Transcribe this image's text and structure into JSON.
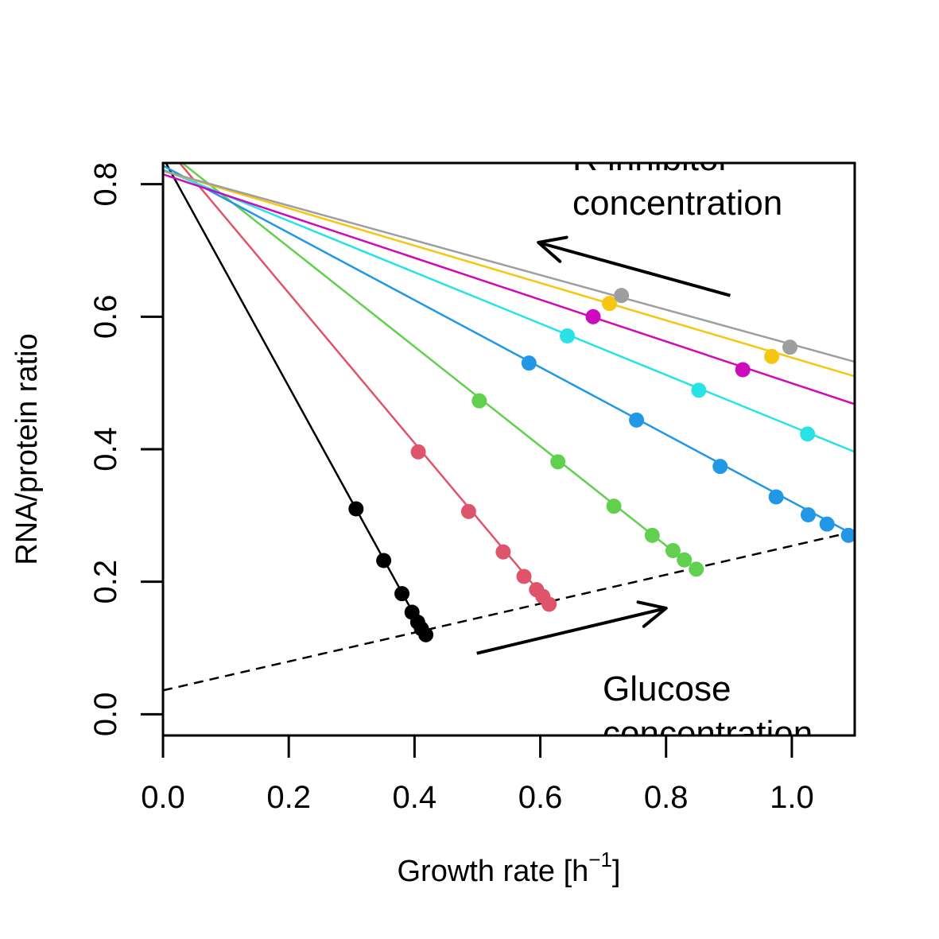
{
  "chart_data": {
    "type": "scatter",
    "xlabel_main": "Growth rate [h",
    "xlabel_sup": "−1",
    "xlabel_tail": "]",
    "ylabel": "RNA/protein ratio",
    "xlim": [
      0.0,
      1.1
    ],
    "ylim": [
      -0.032,
      0.832
    ],
    "x_ticks": [
      0.0,
      0.2,
      0.4,
      0.6,
      0.8,
      1.0
    ],
    "x_tick_labels": [
      "0.0",
      "0.2",
      "0.4",
      "0.6",
      "0.8",
      "1.0"
    ],
    "y_ticks": [
      0.0,
      0.2,
      0.4,
      0.6,
      0.8
    ],
    "y_tick_labels": [
      "0.0",
      "0.2",
      "0.4",
      "0.6",
      "0.8"
    ],
    "grid": false,
    "legend": "none",
    "annotations": {
      "inhibitor": {
        "line1": "R inhibitor",
        "line2": "concentration"
      },
      "glucose": {
        "line1": "Glucose",
        "line2": "concentration"
      }
    },
    "series": [
      {
        "color": "#000000",
        "line": {
          "x": [
            0.0,
            0.418
          ],
          "y": [
            0.84,
            0.118
          ]
        },
        "points": {
          "x": [
            0.307,
            0.351,
            0.38,
            0.396,
            0.405,
            0.411,
            0.418
          ],
          "y": [
            0.31,
            0.232,
            0.182,
            0.154,
            0.139,
            0.129,
            0.12
          ]
        }
      },
      {
        "color": "#DF536B",
        "line": {
          "x": [
            0.0,
            0.615
          ],
          "y": [
            0.862,
            0.166
          ]
        },
        "points": {
          "x": [
            0.406,
            0.486,
            0.541,
            0.574,
            0.594,
            0.604,
            0.614
          ],
          "y": [
            0.396,
            0.306,
            0.245,
            0.208,
            0.188,
            0.178,
            0.166
          ]
        }
      },
      {
        "color": "#61D04F",
        "line": {
          "x": [
            0.0,
            0.85
          ],
          "y": [
            0.855,
            0.217
          ]
        },
        "points": {
          "x": [
            0.503,
            0.628,
            0.717,
            0.778,
            0.811,
            0.829,
            0.848
          ],
          "y": [
            0.473,
            0.381,
            0.314,
            0.27,
            0.247,
            0.233,
            0.219
          ]
        }
      },
      {
        "color": "#2297E6",
        "line": {
          "x": [
            0.0,
            1.1
          ],
          "y": [
            0.828,
            0.27
          ]
        },
        "points": {
          "x": [
            0.582,
            0.753,
            0.886,
            0.975,
            1.026,
            1.056,
            1.09
          ],
          "y": [
            0.53,
            0.444,
            0.374,
            0.328,
            0.301,
            0.287,
            0.27
          ]
        }
      },
      {
        "color": "#28E2E5",
        "line": {
          "x": [
            0.0,
            1.1
          ],
          "y": [
            0.822,
            0.396
          ]
        },
        "points": {
          "x": [
            0.643,
            0.852,
            1.025
          ],
          "y": [
            0.571,
            0.489,
            0.423
          ]
        }
      },
      {
        "color": "#CD0BBC",
        "line": {
          "x": [
            0.0,
            1.1
          ],
          "y": [
            0.815,
            0.468
          ]
        },
        "points": {
          "x": [
            0.684,
            0.922
          ],
          "y": [
            0.6,
            0.52
          ]
        }
      },
      {
        "color": "#F5C710",
        "line": {
          "x": [
            0.0,
            1.1
          ],
          "y": [
            0.82,
            0.51
          ]
        },
        "points": {
          "x": [
            0.71,
            0.968
          ],
          "y": [
            0.62,
            0.54
          ]
        }
      },
      {
        "color": "#9E9E9E",
        "line": {
          "x": [
            0.0,
            1.1
          ],
          "y": [
            0.82,
            0.532
          ]
        },
        "points": {
          "x": [
            0.729,
            0.997
          ],
          "y": [
            0.632,
            0.554
          ]
        }
      }
    ],
    "reference_line": {
      "color": "#000000",
      "style": "dashed",
      "x": [
        0.0,
        1.1
      ],
      "y": [
        0.036,
        0.276
      ]
    },
    "arrows": [
      {
        "from": {
          "x": 0.902,
          "y": 0.632
        },
        "to": {
          "x": 0.597,
          "y": 0.712
        }
      },
      {
        "from": {
          "x": 0.499,
          "y": 0.092
        },
        "to": {
          "x": 0.8,
          "y": 0.16
        }
      }
    ]
  }
}
